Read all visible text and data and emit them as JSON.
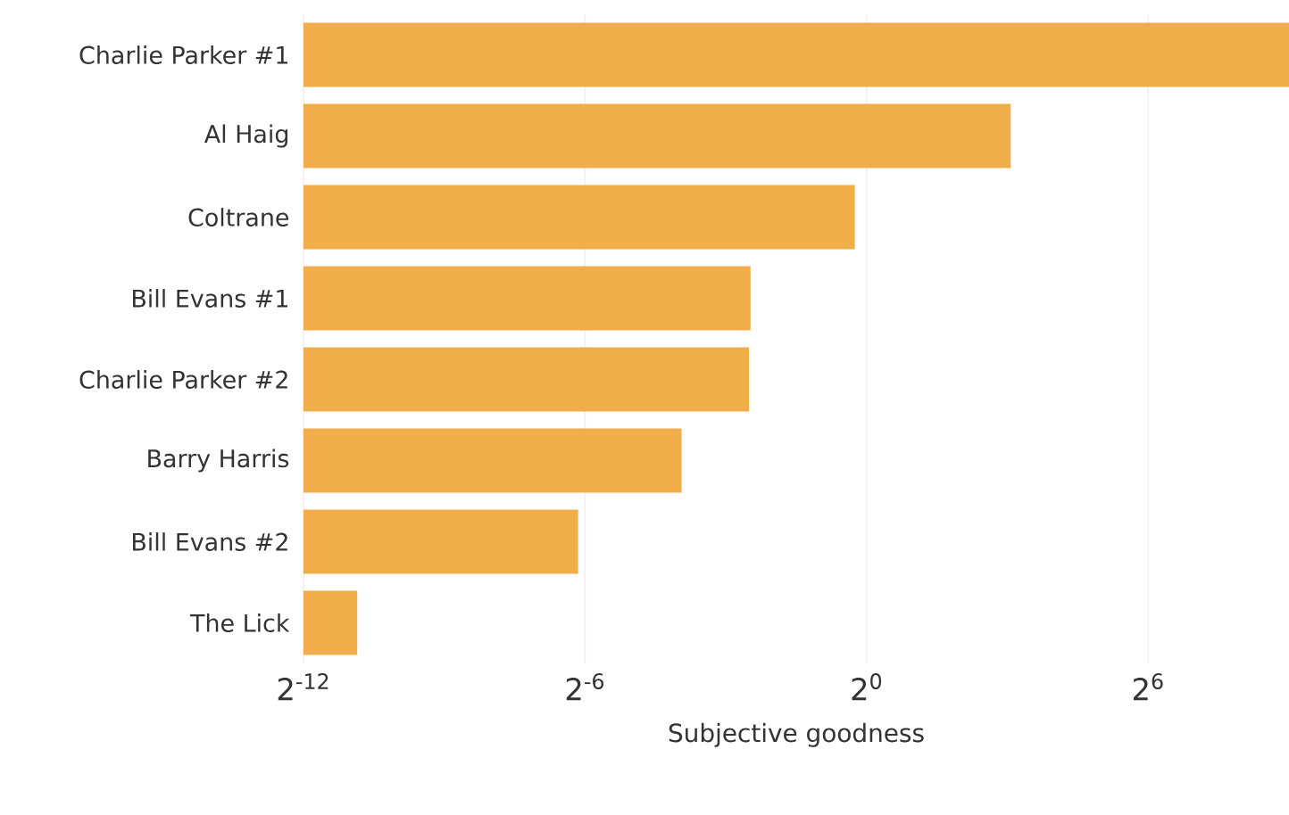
{
  "chart_data": {
    "type": "bar",
    "orientation": "horizontal",
    "xlabel": "Subjective goodness",
    "categories": [
      "Charlie Parker #1",
      "Al Haig",
      "Coltrane",
      "Bill Evans #1",
      "Charlie Parker #2",
      "Barry Harris",
      "Bill Evans #2",
      "The Lick"
    ],
    "values": [
      512,
      8.4,
      0.84,
      0.18,
      0.176,
      0.065,
      0.0141,
      0.00054
    ],
    "color": "#f0ad4a",
    "log": "x",
    "xlim": [
      0.000244140625,
      512
    ],
    "xticks": [
      {
        "value": 0.000244140625,
        "label": "2$^{-12}$"
      },
      {
        "value": 0.015625,
        "label": "2$^{-6}$"
      },
      {
        "value": 1,
        "label": "2$^{0}$"
      },
      {
        "value": 64,
        "label": "2$^{6}$"
      }
    ],
    "grid": "x"
  }
}
